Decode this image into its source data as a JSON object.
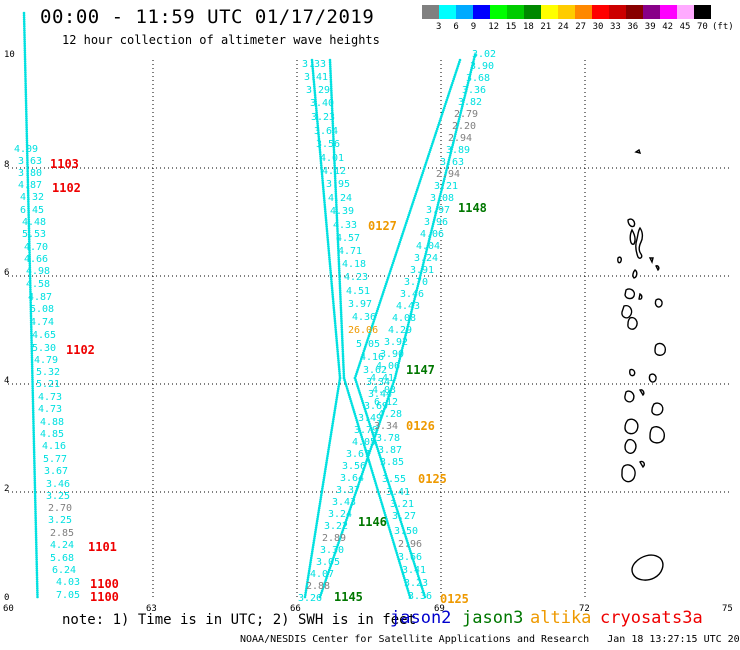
{
  "header": {
    "title": "00:00 - 11:59 UTC 01/17/2019",
    "subtitle": "12 hour collection of altimeter wave heights"
  },
  "colorbar": {
    "colors": [
      "#808080",
      "#00ffff",
      "#00aaff",
      "#0000ff",
      "#00ff00",
      "#00cc00",
      "#008800",
      "#ffff00",
      "#ffcc00",
      "#ff8800",
      "#ff0000",
      "#cc0000",
      "#880000",
      "#880088",
      "#ff00ff",
      "#ffaaff",
      "#000000"
    ],
    "labels": [
      "3",
      "6",
      "9",
      "12",
      "15",
      "18",
      "21",
      "24",
      "27",
      "30",
      "33",
      "36",
      "39",
      "42",
      "45",
      "70"
    ],
    "unit": "(ft)"
  },
  "axes": {
    "y_ticks": [
      "10",
      "8",
      "6",
      "4",
      "2",
      "0"
    ],
    "x_ticks": [
      "60",
      "63",
      "66",
      "69",
      "72",
      "75"
    ]
  },
  "colors": {
    "cyan": "#00e0e0",
    "grey": "#808080",
    "orange": "#ee9900",
    "red": "#ee0000",
    "green": "#007700",
    "blue": "#0000cc"
  },
  "tracks": [
    {
      "dots": [
        [
          37.5,
          597
        ],
        [
          24,
          13
        ]
      ]
    },
    {
      "dots": [
        [
          305,
          597
        ],
        [
          340,
          378
        ],
        [
          312,
          60
        ]
      ]
    },
    {
      "dots": [
        [
          320,
          597
        ],
        [
          395,
          378
        ],
        [
          475,
          55
        ]
      ]
    },
    {
      "dots": [
        [
          410,
          597
        ],
        [
          344,
          378
        ],
        [
          330,
          60
        ]
      ]
    },
    {
      "dots": [
        [
          425,
          597
        ],
        [
          355,
          378
        ],
        [
          460,
          60
        ]
      ]
    }
  ],
  "labels": [
    {
      "t": "4.09",
      "c": "cyan"
    },
    {
      "t": "3.63",
      "c": "cyan"
    },
    {
      "t": "3.80",
      "c": "cyan"
    },
    {
      "t": "4.87",
      "c": "cyan"
    },
    {
      "t": "4.32",
      "c": "cyan"
    },
    {
      "t": "6.45",
      "c": "cyan"
    },
    {
      "t": "4.48",
      "c": "cyan"
    },
    {
      "t": "5.53",
      "c": "cyan"
    },
    {
      "t": "4.70",
      "c": "cyan"
    },
    {
      "t": "4.66",
      "c": "cyan"
    },
    {
      "t": "4.98",
      "c": "cyan"
    },
    {
      "t": "4.58",
      "c": "cyan"
    },
    {
      "t": "4.87",
      "c": "cyan"
    },
    {
      "t": "5.08",
      "c": "cyan"
    },
    {
      "t": "4.74",
      "c": "cyan"
    },
    {
      "t": "4.65",
      "c": "cyan"
    },
    {
      "t": "5.30",
      "c": "cyan"
    },
    {
      "t": "4.79",
      "c": "cyan"
    },
    {
      "t": "5.32",
      "c": "cyan"
    },
    {
      "t": "5.21",
      "c": "cyan"
    },
    {
      "t": "4.73",
      "c": "cyan"
    },
    {
      "t": "4.73",
      "c": "cyan"
    },
    {
      "t": "4.88",
      "c": "cyan"
    },
    {
      "t": "4.85",
      "c": "cyan"
    },
    {
      "t": "4.16",
      "c": "cyan"
    },
    {
      "t": "5.77",
      "c": "cyan"
    },
    {
      "t": "3.67",
      "c": "cyan"
    },
    {
      "t": "3.46",
      "c": "cyan"
    },
    {
      "t": "3.25",
      "c": "cyan"
    },
    {
      "t": "2.70",
      "c": "grey"
    },
    {
      "t": "3.25",
      "c": "cyan"
    },
    {
      "t": "2.85",
      "c": "grey"
    },
    {
      "t": "4.24",
      "c": "cyan"
    },
    {
      "t": "5.68",
      "c": "cyan"
    },
    {
      "t": "6.24",
      "c": "cyan"
    },
    {
      "t": "4.03",
      "c": "cyan"
    },
    {
      "t": "7.05",
      "c": "cyan"
    },
    {
      "t": "3.33",
      "c": "cyan"
    },
    {
      "t": "3.41",
      "c": "cyan"
    },
    {
      "t": "3.29",
      "c": "cyan"
    },
    {
      "t": "3.40",
      "c": "cyan"
    },
    {
      "t": "3.23",
      "c": "cyan"
    },
    {
      "t": "3.64",
      "c": "cyan"
    },
    {
      "t": "3.56",
      "c": "cyan"
    },
    {
      "t": "4.01",
      "c": "cyan"
    },
    {
      "t": "4.12",
      "c": "cyan"
    },
    {
      "t": "3.95",
      "c": "cyan"
    },
    {
      "t": "4.24",
      "c": "cyan"
    },
    {
      "t": "4.39",
      "c": "cyan"
    },
    {
      "t": "4.33",
      "c": "cyan"
    },
    {
      "t": "4.57",
      "c": "cyan"
    },
    {
      "t": "4.71",
      "c": "cyan"
    },
    {
      "t": "4.18",
      "c": "cyan"
    },
    {
      "t": "4.23",
      "c": "cyan"
    },
    {
      "t": "4.51",
      "c": "cyan"
    },
    {
      "t": "3.97",
      "c": "cyan"
    },
    {
      "t": "4.36",
      "c": "cyan"
    },
    {
      "t": "26.06",
      "c": "orange"
    },
    {
      "t": "5.05",
      "c": "cyan"
    },
    {
      "t": "4.16",
      "c": "cyan"
    },
    {
      "t": "3.62",
      "c": "cyan"
    },
    {
      "t": "3.34",
      "c": "cyan"
    },
    {
      "t": "3.44",
      "c": "cyan"
    },
    {
      "t": "3.69",
      "c": "cyan"
    },
    {
      "t": "3.49",
      "c": "cyan"
    },
    {
      "t": "3.79",
      "c": "cyan"
    },
    {
      "t": "4.05",
      "c": "cyan"
    },
    {
      "t": "3.67",
      "c": "cyan"
    },
    {
      "t": "3.56",
      "c": "cyan"
    },
    {
      "t": "3.64",
      "c": "cyan"
    },
    {
      "t": "3.37",
      "c": "cyan"
    },
    {
      "t": "3.43",
      "c": "cyan"
    },
    {
      "t": "3.24",
      "c": "cyan"
    },
    {
      "t": "3.22",
      "c": "cyan"
    },
    {
      "t": "2.89",
      "c": "grey"
    },
    {
      "t": "3.30",
      "c": "cyan"
    },
    {
      "t": "3.05",
      "c": "cyan"
    },
    {
      "t": "4.07",
      "c": "cyan"
    },
    {
      "t": "2.88",
      "c": "grey"
    },
    {
      "t": "3.26",
      "c": "cyan"
    },
    {
      "t": "3.02",
      "c": "cyan"
    },
    {
      "t": "3.90",
      "c": "cyan"
    },
    {
      "t": "3.68",
      "c": "cyan"
    },
    {
      "t": "3.36",
      "c": "cyan"
    },
    {
      "t": "3.82",
      "c": "cyan"
    },
    {
      "t": "2.79",
      "c": "grey"
    },
    {
      "t": "2.20",
      "c": "grey"
    },
    {
      "t": "2.94",
      "c": "grey"
    },
    {
      "t": "3.89",
      "c": "cyan"
    },
    {
      "t": "3.63",
      "c": "cyan"
    },
    {
      "t": "2.94",
      "c": "grey"
    },
    {
      "t": "3.21",
      "c": "cyan"
    },
    {
      "t": "3.08",
      "c": "cyan"
    },
    {
      "t": "3.97",
      "c": "cyan"
    },
    {
      "t": "3.96",
      "c": "cyan"
    },
    {
      "t": "4.06",
      "c": "cyan"
    },
    {
      "t": "4.04",
      "c": "cyan"
    },
    {
      "t": "3.24",
      "c": "cyan"
    },
    {
      "t": "3.91",
      "c": "cyan"
    },
    {
      "t": "3.70",
      "c": "cyan"
    },
    {
      "t": "3.46",
      "c": "cyan"
    },
    {
      "t": "4.43",
      "c": "cyan"
    },
    {
      "t": "4.08",
      "c": "cyan"
    },
    {
      "t": "4.29",
      "c": "cyan"
    },
    {
      "t": "3.92",
      "c": "cyan"
    },
    {
      "t": "3.90",
      "c": "cyan"
    },
    {
      "t": "4.06",
      "c": "cyan"
    },
    {
      "t": "4.41",
      "c": "cyan"
    },
    {
      "t": "4.03",
      "c": "cyan"
    },
    {
      "t": "6.12",
      "c": "cyan"
    },
    {
      "t": "4.28",
      "c": "cyan"
    },
    {
      "t": "3.34",
      "c": "grey"
    },
    {
      "t": "3.78",
      "c": "cyan"
    },
    {
      "t": "3.87",
      "c": "cyan"
    },
    {
      "t": "3.85",
      "c": "cyan"
    },
    {
      "t": "3.55",
      "c": "cyan"
    },
    {
      "t": "3.41",
      "c": "cyan"
    },
    {
      "t": "3.21",
      "c": "cyan"
    },
    {
      "t": "3.27",
      "c": "cyan"
    },
    {
      "t": "3.50",
      "c": "cyan"
    },
    {
      "t": "2.96",
      "c": "grey"
    },
    {
      "t": "3.66",
      "c": "cyan"
    },
    {
      "t": "3.41",
      "c": "cyan"
    },
    {
      "t": "3.23",
      "c": "cyan"
    },
    {
      "t": "3.36",
      "c": "cyan"
    },
    {
      "t": "2.85",
      "c": "grey"
    },
    {
      "t": "3.21",
      "c": "cyan"
    },
    {
      "t": "3.05",
      "c": "cyan"
    },
    {
      "t": "5.97",
      "c": "cyan"
    }
  ],
  "times": [
    {
      "t": "1103",
      "c": "red"
    },
    {
      "t": "1102",
      "c": "red"
    },
    {
      "t": "1102",
      "c": "red"
    },
    {
      "t": "1101",
      "c": "red"
    },
    {
      "t": "1100",
      "c": "red"
    },
    {
      "t": "1100",
      "c": "red"
    },
    {
      "t": "0127",
      "c": "orange"
    },
    {
      "t": "1148",
      "c": "green"
    },
    {
      "t": "1147",
      "c": "green"
    },
    {
      "t": "0126",
      "c": "orange"
    },
    {
      "t": "0125",
      "c": "orange"
    },
    {
      "t": "1146",
      "c": "green"
    },
    {
      "t": "1145",
      "c": "green"
    },
    {
      "t": "0125",
      "c": "orange"
    }
  ],
  "footer": {
    "note": "note: 1) Time is in UTC; 2) SWH is in feet",
    "legend": [
      {
        "t": "jason2",
        "c": "blue"
      },
      {
        "t": "jason3",
        "c": "green"
      },
      {
        "t": "altika",
        "c": "orange"
      },
      {
        "t": "cryosat",
        "c": "red"
      },
      {
        "t": "s3a",
        "c": "red"
      }
    ],
    "credit": "NOAA/NESDIS Center for Satellite Applications and Research   Jan 18 13:27:15 UTC 2019"
  }
}
